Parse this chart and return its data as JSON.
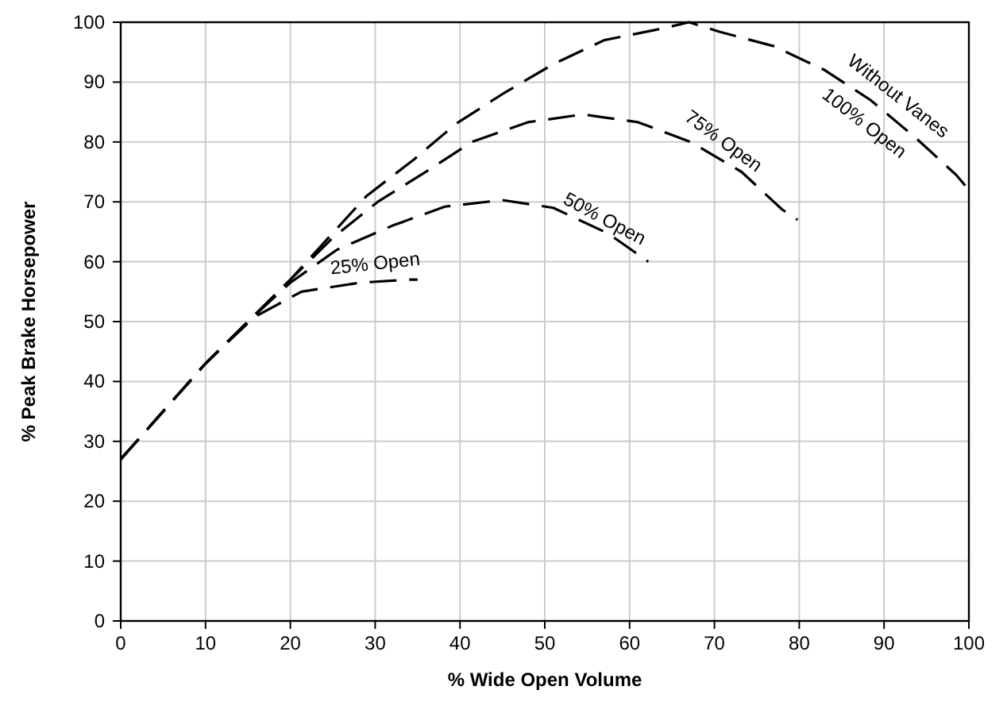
{
  "chart_data": {
    "type": "line",
    "xlabel": "% Wide Open Volume",
    "ylabel": "% Peak Brake Horsepower",
    "xlim": [
      0,
      100
    ],
    "ylim": [
      0,
      100
    ],
    "xticks": [
      0,
      10,
      20,
      30,
      40,
      50,
      60,
      70,
      80,
      90,
      100
    ],
    "yticks": [
      0,
      10,
      20,
      30,
      40,
      50,
      60,
      70,
      80,
      90,
      100
    ],
    "grid": true,
    "line_style": "dashed",
    "series": [
      {
        "color": "#000000",
        "x": [
          0,
          5,
          10,
          15,
          20,
          24.5,
          29,
          34.5,
          39.5,
          45,
          51,
          57,
          64,
          67,
          70.6,
          77,
          83,
          88.4,
          93.8,
          98.5,
          100
        ],
        "values": [
          27,
          35,
          43,
          50,
          57,
          64,
          71,
          77,
          83,
          88,
          93,
          97,
          99,
          100,
          98.4,
          96,
          92,
          87,
          80.6,
          74.5,
          72
        ]
      },
      {
        "color": "#000000",
        "x": [
          0,
          5,
          10,
          15,
          20,
          25,
          30.3,
          36.3,
          41.4,
          48,
          54.5,
          61,
          67.2,
          73.2,
          78,
          79.8
        ],
        "values": [
          27,
          35,
          43,
          50,
          57,
          64,
          70,
          75.3,
          80,
          83.3,
          84.6,
          83.3,
          80,
          75,
          68.7,
          67
        ]
      },
      {
        "color": "#000000",
        "x": [
          0,
          5,
          10,
          15,
          20,
          25.5,
          32,
          38.2,
          45,
          51,
          57.5,
          62.2
        ],
        "values": [
          27,
          35,
          43,
          50,
          56.5,
          62,
          66,
          69.2,
          70.3,
          69,
          64.7,
          60
        ]
      },
      {
        "color": "#000000",
        "x": [
          0,
          5,
          10,
          15.7,
          21.3,
          28.2,
          34,
          35
        ],
        "values": [
          27,
          35,
          43,
          50.7,
          55,
          56.5,
          57,
          57
        ]
      }
    ],
    "annotations": [
      "25% Open",
      "50% Open",
      "75% Open",
      "Without Vanes",
      "100% Open"
    ]
  }
}
